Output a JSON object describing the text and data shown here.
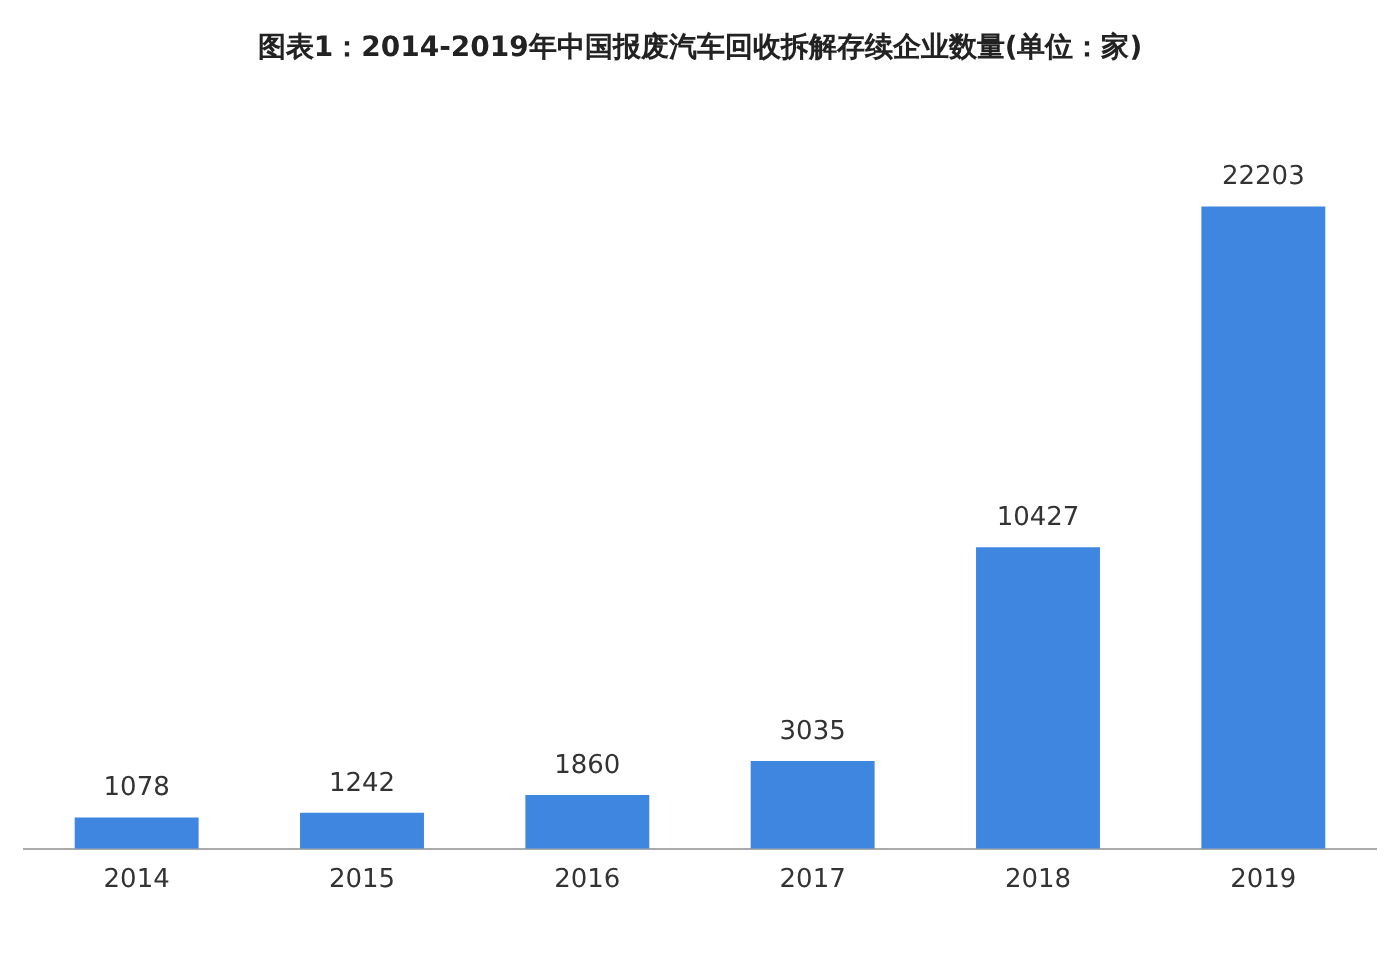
{
  "chart_data": {
    "type": "bar",
    "title": "图表1：2014-2019年中国报废汽车回收拆解存续企业数量(单位：家)",
    "categories": [
      "2014",
      "2015",
      "2016",
      "2017",
      "2018",
      "2019"
    ],
    "values": [
      1078,
      1242,
      1860,
      3035,
      10427,
      22203
    ],
    "color": "#3f86e0",
    "data_labels": true,
    "grid": false,
    "legend": false
  }
}
